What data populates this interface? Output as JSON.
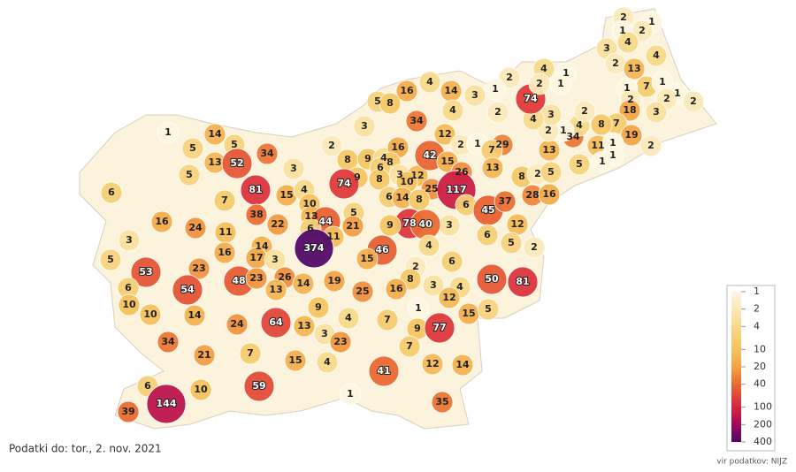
{
  "map": {
    "type": "choropleth",
    "values": [
      2,
      1,
      2,
      1,
      4,
      3,
      4,
      2,
      13,
      7,
      1,
      1,
      2,
      2,
      1,
      2,
      18,
      3,
      7,
      19,
      2,
      8,
      11,
      1,
      1,
      1,
      5,
      13,
      34,
      4,
      2,
      1,
      2,
      3,
      4,
      74,
      2,
      4,
      1,
      2,
      1,
      1,
      2,
      4,
      14,
      3,
      16,
      5,
      8,
      4,
      34,
      3,
      12,
      2,
      1,
      29,
      7,
      13,
      8,
      2,
      5,
      28,
      16,
      2,
      8,
      9,
      4,
      16,
      8,
      6,
      3,
      9,
      74,
      8,
      12,
      42,
      15,
      26,
      10,
      25,
      117,
      6,
      6,
      14,
      8,
      45,
      37,
      12,
      6,
      5,
      2,
      3,
      78,
      40,
      9,
      6,
      4,
      2,
      8,
      3,
      4,
      12,
      16,
      46,
      15,
      5,
      21,
      1,
      5,
      14,
      5,
      13,
      52,
      34,
      5,
      6,
      81,
      15,
      4,
      10,
      3,
      13,
      44,
      11,
      6,
      374,
      38,
      22,
      7,
      16,
      24,
      11,
      3,
      5,
      16,
      14,
      17,
      3,
      53,
      23,
      6,
      10,
      54,
      48,
      23,
      26,
      13,
      14,
      19,
      25,
      10,
      14,
      9,
      4,
      7,
      1,
      9,
      77,
      15,
      5,
      50,
      81,
      64,
      24,
      13,
      3,
      23,
      34,
      21,
      7,
      15,
      4,
      7,
      12,
      14,
      6,
      144,
      39,
      10,
      59,
      41,
      1,
      35
    ],
    "legend": {
      "log": true,
      "ticks": [
        1,
        2,
        4,
        10,
        20,
        40,
        100,
        200,
        400
      ],
      "colors": [
        "#fdf6e0",
        "#fbe9b9",
        "#f7d98a",
        "#f5c25c",
        "#f3a245",
        "#ea6a32",
        "#d8243f",
        "#a3075a",
        "#4a0a6a"
      ]
    },
    "footer_left": "Podatki do: tor., 2. nov. 2021",
    "footer_right": "vir podatkov: NIJZ"
  }
}
